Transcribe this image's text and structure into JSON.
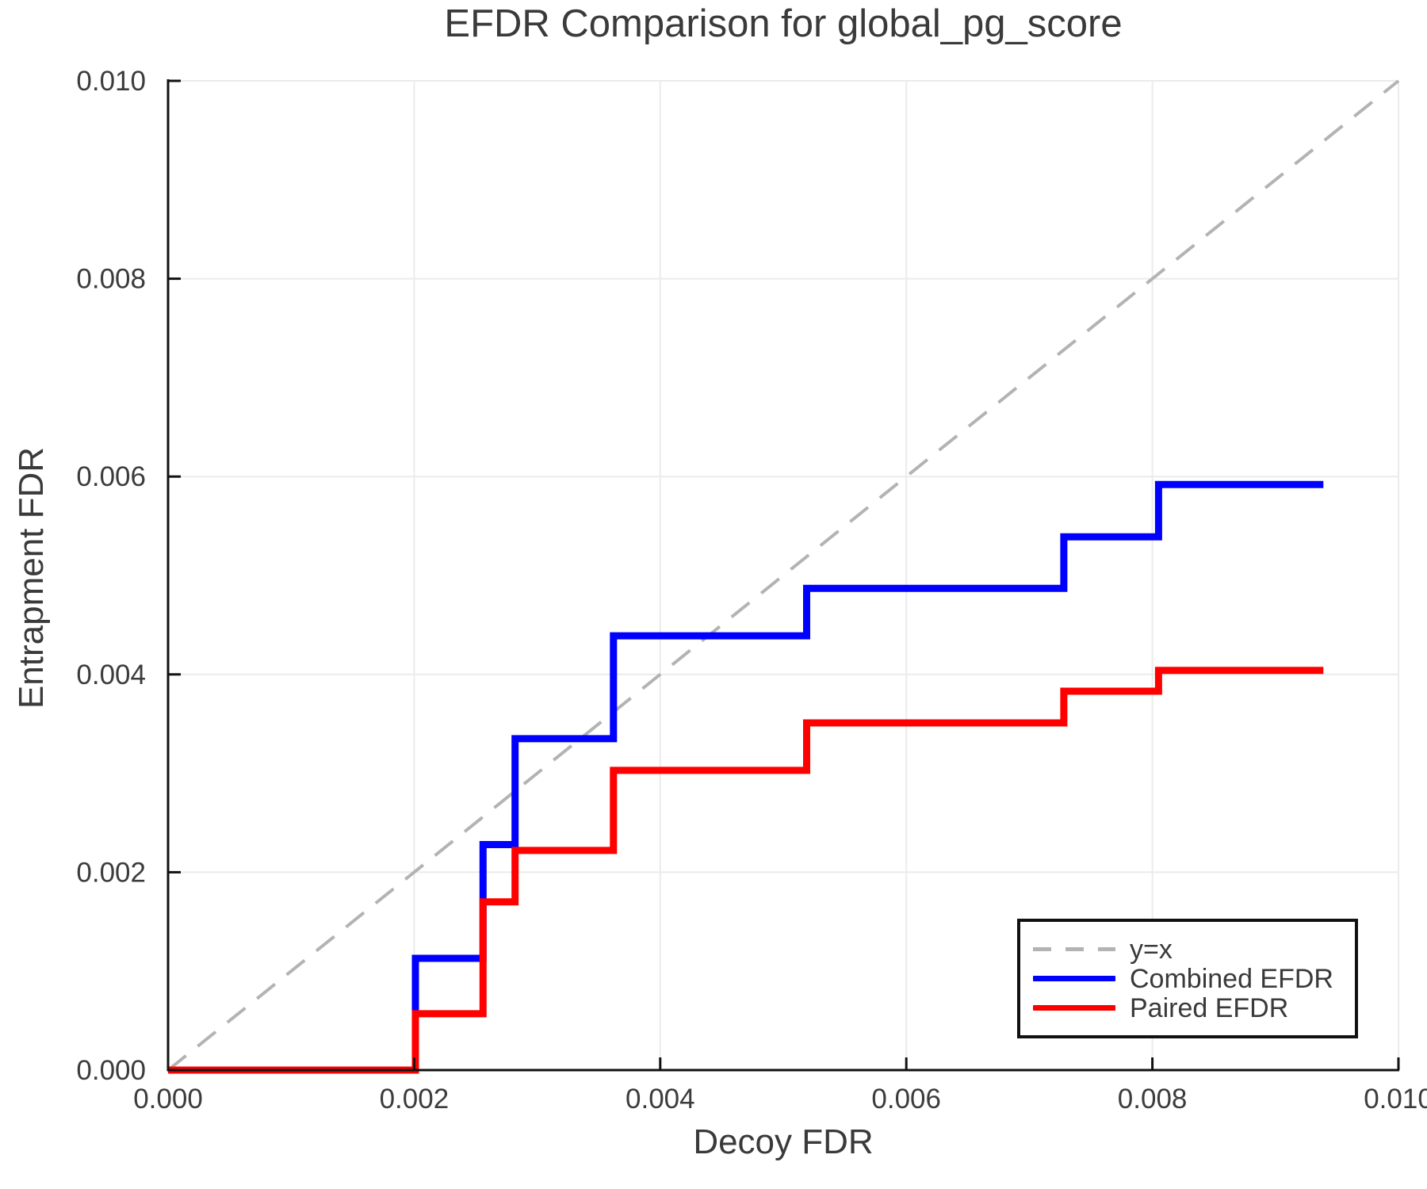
{
  "title": "EFDR Comparison for global_pg_score",
  "axes": {
    "xlabel": "Decoy FDR",
    "ylabel": "Entrapment FDR",
    "x_range": [
      0,
      0.01
    ],
    "y_range": [
      0,
      0.01
    ],
    "x_ticks": {
      "values": [
        0,
        0.002,
        0.004,
        0.006,
        0.008,
        0.01
      ],
      "labels": [
        "0.000",
        "0.002",
        "0.004",
        "0.006",
        "0.008",
        "0.010"
      ]
    },
    "y_ticks": {
      "values": [
        0,
        0.002,
        0.004,
        0.006,
        0.008,
        0.01
      ],
      "labels": [
        "0.000",
        "0.002",
        "0.004",
        "0.006",
        "0.008",
        "0.010"
      ]
    },
    "grid": "on"
  },
  "legend": {
    "position": "lower right",
    "items": [
      {
        "label": "y=x",
        "style": "dashed",
        "color": "#b3b3b3"
      },
      {
        "label": "Combined EFDR",
        "style": "solid",
        "color": "#0000ff"
      },
      {
        "label": "Paired EFDR",
        "style": "solid",
        "color": "#ff0000"
      }
    ]
  },
  "chart_data": {
    "type": "line",
    "subtype": "step-post",
    "title": "EFDR Comparison for global_pg_score",
    "xlabel": "Decoy FDR",
    "ylabel": "Entrapment FDR",
    "xlim": [
      0,
      0.01
    ],
    "ylim": [
      0,
      0.01
    ],
    "grid": "on",
    "legend_position": "lower right",
    "reference_line": {
      "name": "y=x",
      "from": [
        0,
        0
      ],
      "to": [
        0.01,
        0.01
      ],
      "style": "dashed",
      "color": "#b3b3b3"
    },
    "series": [
      {
        "name": "Combined EFDR",
        "color": "#0000ff",
        "x": [
          0,
          0.00201,
          0.00256,
          0.00282,
          0.00362,
          0.00519,
          0.00728,
          0.00805,
          0.00939
        ],
        "y": [
          0,
          0.00113,
          0.00228,
          0.00335,
          0.00439,
          0.00487,
          0.00539,
          0.00592,
          0.00592
        ]
      },
      {
        "name": "Paired EFDR",
        "color": "#ff0000",
        "x": [
          0,
          0.00201,
          0.00256,
          0.00282,
          0.00362,
          0.00519,
          0.00728,
          0.00805,
          0.00939
        ],
        "y": [
          0,
          0.00057,
          0.0017,
          0.00222,
          0.00303,
          0.00351,
          0.00383,
          0.00404,
          0.00404
        ]
      }
    ]
  },
  "style_colors": {
    "grid": "#ebebeb",
    "spine": "#111111",
    "tick_label": "#3c3c3c"
  }
}
